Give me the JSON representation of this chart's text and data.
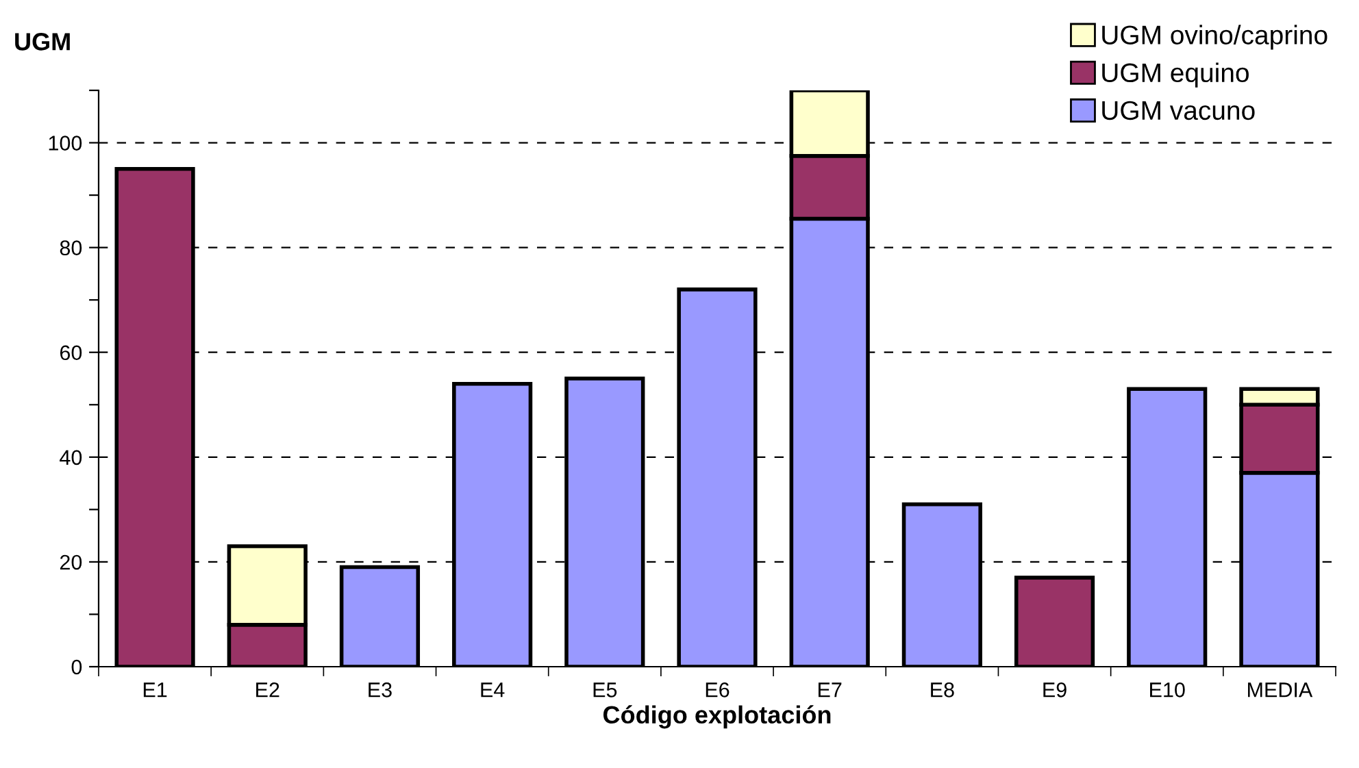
{
  "chart_data": {
    "type": "bar",
    "stacked": true,
    "ylabel": "UGM",
    "xlabel": "Código explotación",
    "categories": [
      "E1",
      "E2",
      "E3",
      "E4",
      "E5",
      "E6",
      "E7",
      "E8",
      "E9",
      "E10",
      "MEDIA"
    ],
    "series": [
      {
        "name": "UGM vacuno",
        "color": "#9999ff",
        "values": [
          0,
          0,
          19,
          54,
          55,
          72,
          85.5,
          31,
          0,
          53,
          37
        ]
      },
      {
        "name": "UGM equino",
        "color": "#993366",
        "values": [
          95,
          8,
          0,
          0,
          0,
          0,
          12,
          0,
          17,
          0,
          13
        ]
      },
      {
        "name": "UGM ovino/caprino",
        "color": "#ffffcc",
        "values": [
          0,
          15,
          0,
          0,
          0,
          0,
          12.5,
          0,
          0,
          0,
          3
        ]
      }
    ],
    "ylim": [
      0,
      110
    ],
    "yticks": [
      0,
      {
        "value": 10,
        "label": null
      },
      20,
      {
        "value": 30,
        "label": null
      },
      40,
      {
        "value": 50,
        "label": null
      },
      60,
      {
        "value": 70,
        "label": null
      },
      80,
      {
        "value": 90,
        "label": null
      },
      100,
      {
        "value": 110,
        "label": null
      }
    ],
    "grid": "y",
    "legend": "top right"
  }
}
